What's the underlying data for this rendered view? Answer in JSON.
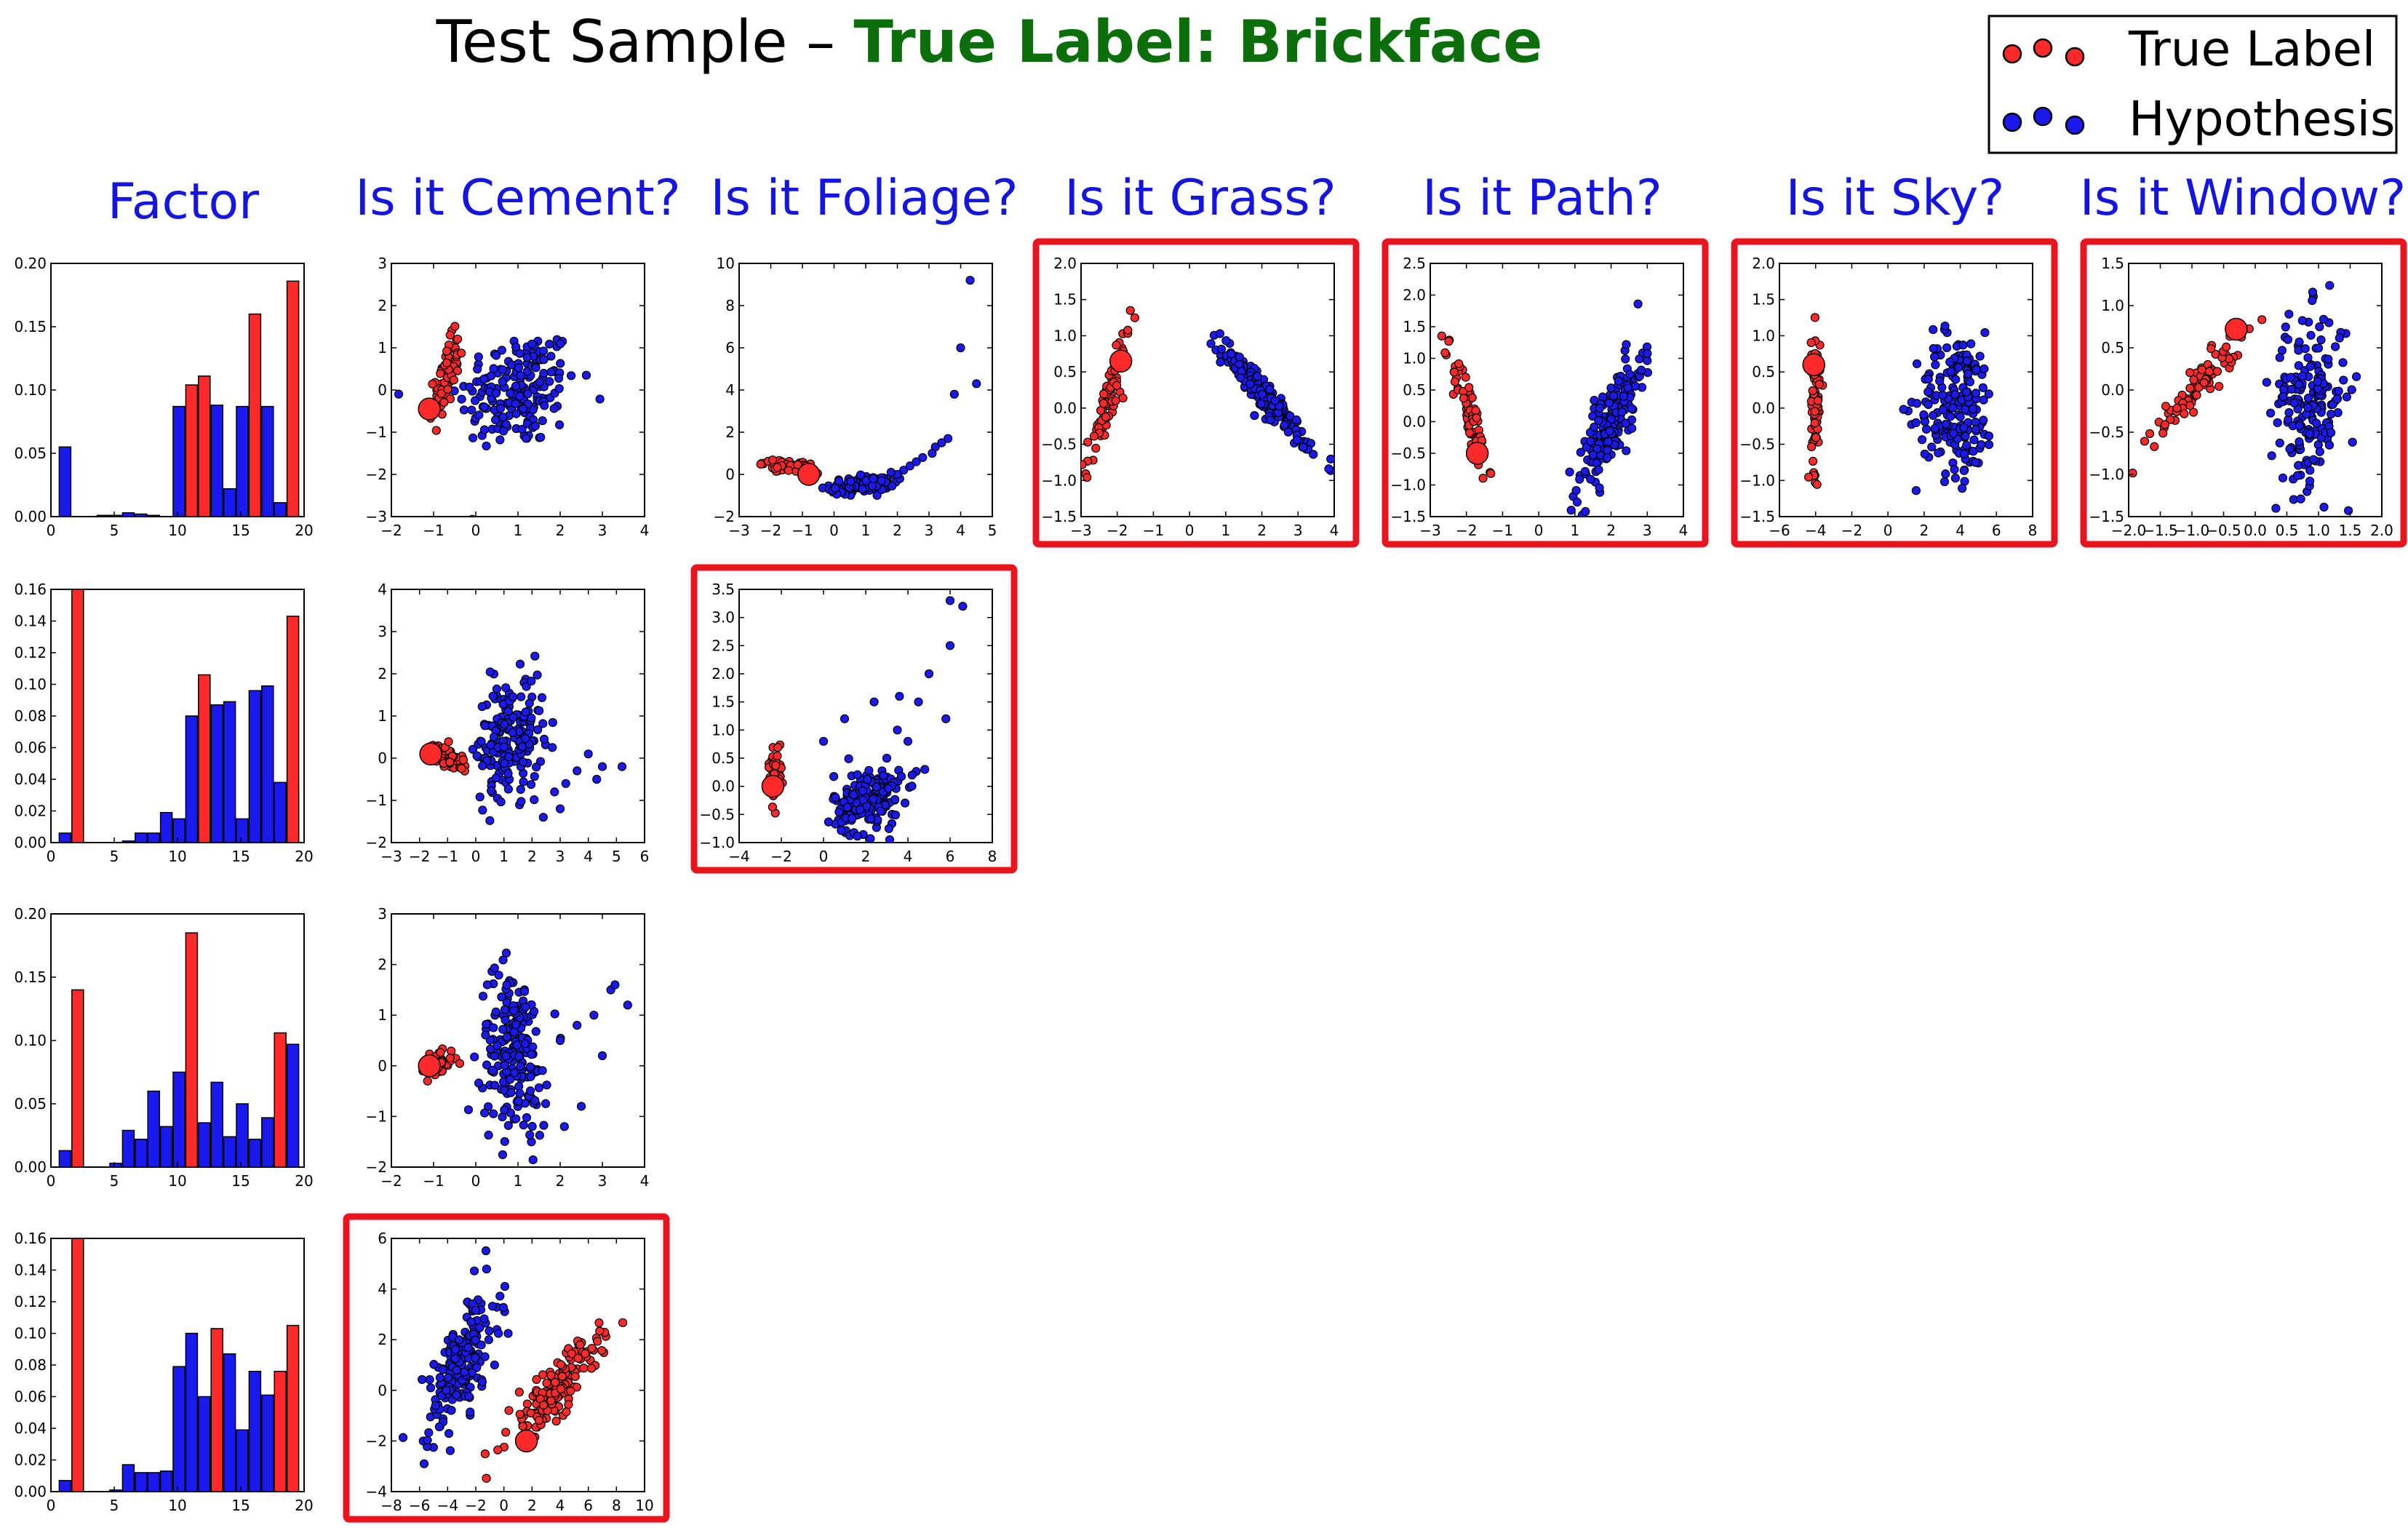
{
  "figure": {
    "title_prefix": "Test Sample – ",
    "title_highlight": "True Label: Brickface",
    "title_highlight_color": "#0a6e0a",
    "column_heading_color": "#1515e0",
    "highlight_border_color": "#e8141e",
    "columns": [
      "Factor",
      "Is it Cement?",
      "Is it Foliage?",
      "Is it Grass?",
      "Is it Path?",
      "Is it Sky?",
      "Is it Window?"
    ],
    "legend": [
      {
        "label": "True Label",
        "color": "#ff2a2a"
      },
      {
        "label": "Hypothesis",
        "color": "#1a1aee"
      }
    ]
  },
  "chart_data": [
    {
      "type": "bar",
      "row": 0,
      "col": 0,
      "x": [
        1,
        2,
        3,
        4,
        5,
        6,
        7,
        8,
        9,
        10,
        11,
        12,
        13,
        14,
        15,
        16,
        17,
        18,
        19
      ],
      "values": [
        0.055,
        0.0,
        0.0,
        0.001,
        0.001,
        0.003,
        0.002,
        0.001,
        0.0,
        0.087,
        0.104,
        0.111,
        0.088,
        0.022,
        0.087,
        0.16,
        0.087,
        0.011,
        0.186
      ],
      "colors": [
        "b",
        "b",
        "b",
        "b",
        "b",
        "b",
        "b",
        "b",
        "b",
        "b",
        "r",
        "r",
        "b",
        "b",
        "b",
        "r",
        "b",
        "b",
        "r"
      ],
      "xlim": [
        0,
        20
      ],
      "ylim": [
        0,
        0.2
      ],
      "yticks": [
        0.0,
        0.05,
        0.1,
        0.15,
        0.2
      ],
      "xticks": [
        0,
        5,
        10,
        15,
        20
      ]
    },
    {
      "type": "bar",
      "row": 1,
      "col": 0,
      "x": [
        1,
        2,
        3,
        4,
        5,
        6,
        7,
        8,
        9,
        10,
        11,
        12,
        13,
        14,
        15,
        16,
        17,
        18,
        19
      ],
      "values": [
        0.006,
        0.16,
        0.0,
        0.0,
        0.0,
        0.001,
        0.006,
        0.006,
        0.019,
        0.015,
        0.08,
        0.106,
        0.087,
        0.089,
        0.015,
        0.096,
        0.099,
        0.038,
        0.033
      ],
      "colors": [
        "b",
        "r",
        "b",
        "b",
        "b",
        "b",
        "b",
        "b",
        "b",
        "b",
        "b",
        "r",
        "b",
        "b",
        "b",
        "b",
        "b",
        "b",
        "b"
      ],
      "extra_bar": {
        "x": 19,
        "value": 0.143,
        "color": "r"
      },
      "xlim": [
        0,
        20
      ],
      "ylim": [
        0,
        0.16
      ],
      "yticks": [
        0.0,
        0.02,
        0.04,
        0.06,
        0.08,
        0.1,
        0.12,
        0.14,
        0.16
      ],
      "xticks": [
        0,
        5,
        10,
        15,
        20
      ]
    },
    {
      "type": "bar",
      "row": 2,
      "col": 0,
      "x": [
        1,
        2,
        3,
        4,
        5,
        6,
        7,
        8,
        9,
        10,
        11,
        12,
        13,
        14,
        15,
        16,
        17,
        18,
        19
      ],
      "values": [
        0.013,
        0.14,
        0.0,
        0.0,
        0.003,
        0.029,
        0.022,
        0.06,
        0.032,
        0.075,
        0.185,
        0.035,
        0.067,
        0.024,
        0.05,
        0.022,
        0.039,
        0.106,
        0.097
      ],
      "colors": [
        "b",
        "r",
        "b",
        "b",
        "b",
        "b",
        "b",
        "b",
        "b",
        "b",
        "r",
        "b",
        "b",
        "b",
        "b",
        "b",
        "b",
        "r",
        "b"
      ],
      "xlim": [
        0,
        20
      ],
      "ylim": [
        0,
        0.2
      ],
      "yticks": [
        0.0,
        0.05,
        0.1,
        0.15,
        0.2
      ],
      "xticks": [
        0,
        5,
        10,
        15,
        20
      ]
    },
    {
      "type": "bar",
      "row": 3,
      "col": 0,
      "x": [
        1,
        2,
        3,
        4,
        5,
        6,
        7,
        8,
        9,
        10,
        11,
        12,
        13,
        14,
        15,
        16,
        17,
        18,
        19
      ],
      "values": [
        0.007,
        0.16,
        0.0,
        0.0,
        0.001,
        0.017,
        0.012,
        0.012,
        0.013,
        0.079,
        0.1,
        0.06,
        0.103,
        0.087,
        0.039,
        0.076,
        0.061,
        0.076,
        0.105
      ],
      "colors": [
        "b",
        "r",
        "b",
        "b",
        "b",
        "b",
        "b",
        "b",
        "b",
        "b",
        "b",
        "b",
        "r",
        "b",
        "b",
        "b",
        "b",
        "r",
        "r"
      ],
      "xlim": [
        0,
        20
      ],
      "ylim": [
        0,
        0.16
      ],
      "yticks": [
        0.0,
        0.02,
        0.04,
        0.06,
        0.08,
        0.1,
        0.12,
        0.14,
        0.16
      ],
      "xticks": [
        0,
        5,
        10,
        15,
        20
      ]
    },
    {
      "type": "scatter",
      "row": 0,
      "col": 1,
      "xlim": [
        -2,
        4
      ],
      "ylim": [
        -3,
        3
      ],
      "xticks": [
        "−2",
        "−1",
        "0",
        "1",
        "2",
        "3",
        "4"
      ],
      "xtickv": [
        -2,
        -1,
        0,
        1,
        2,
        3,
        4
      ],
      "yticks": [
        "−3",
        "−2",
        "−1",
        "0",
        "1",
        "2",
        "3"
      ],
      "ytickv": [
        -3,
        -2,
        -1,
        0,
        1,
        2,
        3
      ],
      "red": {
        "cx": -0.7,
        "cy": 0.3,
        "sx": 0.15,
        "sy": 0.45,
        "rho": 0.6,
        "n": 70
      },
      "blue": {
        "cx": 1.0,
        "cy": 0.0,
        "sx": 0.7,
        "sy": 0.7,
        "rho": 0.15,
        "n": 190
      },
      "big": [
        -1.1,
        -0.45
      ],
      "highlight": false
    },
    {
      "type": "scatter",
      "row": 0,
      "col": 2,
      "xlim": [
        -3,
        5
      ],
      "ylim": [
        -2,
        10
      ],
      "xticks": [
        "−3",
        "−2",
        "−1",
        "0",
        "1",
        "2",
        "3",
        "4",
        "5"
      ],
      "xtickv": [
        -3,
        -2,
        -1,
        0,
        1,
        2,
        3,
        4,
        5
      ],
      "yticks": [
        "−2",
        "0",
        "2",
        "4",
        "6",
        "8",
        "10"
      ],
      "ytickv": [
        -2,
        0,
        2,
        4,
        6,
        8,
        10
      ],
      "red": {
        "cx": -1.5,
        "cy": 0.4,
        "sx": 0.35,
        "sy": 0.15,
        "rho": -0.5,
        "n": 60
      },
      "blue": {
        "cx": 0.9,
        "cy": -0.5,
        "sx": 0.5,
        "sy": 0.2,
        "rho": 0.3,
        "n": 140
      },
      "tail": [
        [
          1.5,
          -0.3
        ],
        [
          2.0,
          0.0
        ],
        [
          2.4,
          0.4
        ],
        [
          2.8,
          0.8
        ],
        [
          3.2,
          1.3
        ],
        [
          3.6,
          1.7
        ],
        [
          3.1,
          1.0
        ],
        [
          2.6,
          0.6
        ],
        [
          4.0,
          6.0
        ],
        [
          4.3,
          9.2
        ],
        [
          4.5,
          4.3
        ],
        [
          3.8,
          3.8
        ],
        [
          2.2,
          0.2
        ],
        [
          1.8,
          0.1
        ],
        [
          3.4,
          1.5
        ]
      ],
      "big": [
        -0.8,
        0.0
      ],
      "highlight": false
    },
    {
      "type": "scatter",
      "row": 0,
      "col": 3,
      "xlim": [
        -3,
        4
      ],
      "ylim": [
        -1.5,
        2.0
      ],
      "xticks": [
        "−3",
        "−2",
        "−1",
        "0",
        "1",
        "2",
        "3",
        "4"
      ],
      "xtickv": [
        -3,
        -2,
        -1,
        0,
        1,
        2,
        3,
        4
      ],
      "yticks": [
        "−1.5",
        "−1.0",
        "−0.5",
        "0.0",
        "0.5",
        "1.0",
        "1.5",
        "2.0"
      ],
      "ytickv": [
        -1.5,
        -1.0,
        -0.5,
        0.0,
        0.5,
        1.0,
        1.5,
        2.0
      ],
      "red": {
        "cx": -2.25,
        "cy": 0.1,
        "sx": 0.3,
        "sy": 0.5,
        "rho": 0.92,
        "n": 80
      },
      "blue": {
        "cx": 2.1,
        "cy": 0.15,
        "sx": 0.6,
        "sy": 0.35,
        "rho": -0.95,
        "n": 190
      },
      "big": [
        -1.9,
        0.65
      ],
      "highlight": true
    },
    {
      "type": "scatter",
      "row": 0,
      "col": 4,
      "xlim": [
        -3,
        4
      ],
      "ylim": [
        -1.5,
        2.5
      ],
      "xticks": [
        "−3",
        "−2",
        "−1",
        "0",
        "1",
        "2",
        "3",
        "4"
      ],
      "xtickv": [
        -3,
        -2,
        -1,
        0,
        1,
        2,
        3,
        4
      ],
      "yticks": [
        "−1.5",
        "−1.0",
        "−0.5",
        "0.0",
        "0.5",
        "1.0",
        "1.5",
        "2.0",
        "2.5"
      ],
      "ytickv": [
        -1.5,
        -1.0,
        -0.5,
        0.0,
        0.5,
        1.0,
        1.5,
        2.0,
        2.5
      ],
      "red": {
        "cx": -1.9,
        "cy": 0.1,
        "sx": 0.25,
        "sy": 0.45,
        "rho": -0.85,
        "n": 80
      },
      "blue": {
        "cx": 2.0,
        "cy": 0.0,
        "sx": 0.45,
        "sy": 0.55,
        "rho": 0.8,
        "n": 190
      },
      "big": [
        -1.7,
        -0.5
      ],
      "highlight": true
    },
    {
      "type": "scatter",
      "row": 0,
      "col": 5,
      "xlim": [
        -6,
        8
      ],
      "ylim": [
        -1.5,
        2.0
      ],
      "xticks": [
        "−6",
        "−4",
        "−2",
        "0",
        "2",
        "4",
        "6",
        "8"
      ],
      "xtickv": [
        -6,
        -4,
        -2,
        0,
        2,
        4,
        6,
        8
      ],
      "yticks": [
        "−1.5",
        "−1.0",
        "−0.5",
        "0.0",
        "0.5",
        "1.0",
        "1.5",
        "2.0"
      ],
      "ytickv": [
        -1.5,
        -1.0,
        -0.5,
        0.0,
        0.5,
        1.0,
        1.5,
        2.0
      ],
      "red": {
        "cx": -4.0,
        "cy": 0.1,
        "sx": 0.12,
        "sy": 0.5,
        "rho": 0.0,
        "n": 80
      },
      "blue": {
        "cx": 3.8,
        "cy": 0.05,
        "sx": 1.1,
        "sy": 0.5,
        "rho": 0.0,
        "n": 200
      },
      "big": [
        -4.1,
        0.6
      ],
      "highlight": true
    },
    {
      "type": "scatter",
      "row": 0,
      "col": 6,
      "xlim": [
        -2,
        2
      ],
      "ylim": [
        -1.5,
        1.5
      ],
      "xticks": [
        "−2.0",
        "−1.5",
        "−1.0",
        "−0.5",
        "0.0",
        "0.5",
        "1.0",
        "1.5",
        "2.0"
      ],
      "xtickv": [
        -2,
        -1.5,
        -1,
        -0.5,
        0,
        0.5,
        1,
        1.5,
        2
      ],
      "yticks": [
        "−1.5",
        "−1.0",
        "−0.5",
        "0.0",
        "0.5",
        "1.0",
        "1.5"
      ],
      "ytickv": [
        -1.5,
        -1.0,
        -0.5,
        0.0,
        0.5,
        1.0,
        1.5
      ],
      "red": {
        "cx": -0.9,
        "cy": 0.05,
        "sx": 0.35,
        "sy": 0.3,
        "rho": 0.92,
        "n": 80
      },
      "blue": {
        "cx": 0.85,
        "cy": -0.1,
        "sx": 0.3,
        "sy": 0.5,
        "rho": 0.1,
        "n": 190
      },
      "big": [
        -0.3,
        0.72
      ],
      "highlight": true
    },
    {
      "type": "scatter",
      "row": 1,
      "col": 1,
      "xlim": [
        -3,
        6
      ],
      "ylim": [
        -2,
        4
      ],
      "xticks": [
        "−3",
        "−2",
        "−1",
        "0",
        "1",
        "2",
        "3",
        "4",
        "5",
        "6"
      ],
      "xtickv": [
        -3,
        -2,
        -1,
        0,
        1,
        2,
        3,
        4,
        5,
        6
      ],
      "yticks": [
        "−2",
        "−1",
        "0",
        "1",
        "2",
        "3",
        "4"
      ],
      "ytickv": [
        -2,
        -1,
        0,
        1,
        2,
        3,
        4
      ],
      "red": {
        "cx": -1.0,
        "cy": 0.0,
        "sx": 0.35,
        "sy": 0.15,
        "rho": -0.4,
        "n": 50
      },
      "blue": {
        "cx": 1.2,
        "cy": 0.5,
        "sx": 0.6,
        "sy": 0.7,
        "rho": 0.2,
        "n": 190
      },
      "tail": [
        [
          3.2,
          -0.6
        ],
        [
          3.6,
          -0.3
        ],
        [
          4.0,
          0.1
        ],
        [
          4.5,
          -0.2
        ],
        [
          5.2,
          -0.2
        ],
        [
          2.8,
          -0.8
        ],
        [
          3.0,
          -1.2
        ],
        [
          2.4,
          -1.4
        ],
        [
          4.3,
          -0.5
        ]
      ],
      "big": [
        -1.6,
        0.1
      ],
      "highlight": false
    },
    {
      "type": "scatter",
      "row": 1,
      "col": 2,
      "xlim": [
        -4,
        8
      ],
      "ylim": [
        -1.0,
        3.5
      ],
      "xticks": [
        "−4",
        "−2",
        "0",
        "2",
        "4",
        "6",
        "8"
      ],
      "xtickv": [
        -4,
        -2,
        0,
        2,
        4,
        6,
        8
      ],
      "yticks": [
        "−1.0",
        "−0.5",
        "0.0",
        "0.5",
        "1.0",
        "1.5",
        "2.0",
        "2.5",
        "3.0",
        "3.5"
      ],
      "ytickv": [
        -1.0,
        -0.5,
        0.0,
        0.5,
        1.0,
        1.5,
        2.0,
        2.5,
        3.0,
        3.5
      ],
      "red": {
        "cx": -2.3,
        "cy": 0.25,
        "sx": 0.15,
        "sy": 0.25,
        "rho": 0.0,
        "n": 40
      },
      "blue": {
        "cx": 2.1,
        "cy": -0.25,
        "sx": 0.8,
        "sy": 0.3,
        "rho": 0.2,
        "n": 180
      },
      "tail": [
        [
          3.0,
          0.5
        ],
        [
          3.5,
          1.0
        ],
        [
          4.0,
          0.8
        ],
        [
          4.5,
          1.5
        ],
        [
          5.0,
          2.0
        ],
        [
          6.0,
          3.3
        ],
        [
          6.6,
          3.2
        ],
        [
          6.0,
          2.5
        ],
        [
          5.8,
          1.2
        ],
        [
          4.8,
          0.3
        ],
        [
          4.2,
          0.2
        ],
        [
          3.6,
          1.6
        ],
        [
          2.4,
          1.5
        ],
        [
          1.0,
          1.2
        ],
        [
          0.0,
          0.8
        ]
      ],
      "big": [
        -2.4,
        0.0
      ],
      "highlight": true
    },
    {
      "type": "scatter",
      "row": 2,
      "col": 1,
      "xlim": [
        -2,
        4
      ],
      "ylim": [
        -2,
        3
      ],
      "xticks": [
        "−2",
        "−1",
        "0",
        "1",
        "2",
        "3",
        "4"
      ],
      "xtickv": [
        -2,
        -1,
        0,
        1,
        2,
        3,
        4
      ],
      "yticks": [
        "−2",
        "−1",
        "0",
        "1",
        "2",
        "3"
      ],
      "ytickv": [
        -2,
        -1,
        0,
        1,
        2,
        3
      ],
      "red": {
        "cx": -0.9,
        "cy": 0.05,
        "sx": 0.2,
        "sy": 0.15,
        "rho": 0.3,
        "n": 40
      },
      "blue": {
        "cx": 0.9,
        "cy": 0.3,
        "sx": 0.4,
        "sy": 0.8,
        "rho": -0.1,
        "n": 200
      },
      "tail": [
        [
          2.0,
          0.5
        ],
        [
          2.4,
          0.8
        ],
        [
          2.8,
          1.0
        ],
        [
          3.2,
          1.5
        ],
        [
          3.6,
          1.2
        ],
        [
          3.0,
          0.2
        ],
        [
          2.5,
          -0.8
        ],
        [
          2.1,
          -1.2
        ],
        [
          3.3,
          1.6
        ]
      ],
      "big": [
        -1.1,
        0.0
      ],
      "highlight": false
    },
    {
      "type": "scatter",
      "row": 3,
      "col": 1,
      "xlim": [
        -8,
        10
      ],
      "ylim": [
        -4,
        6
      ],
      "xticks": [
        "−8",
        "−6",
        "−4",
        "−2",
        "0",
        "2",
        "4",
        "6",
        "8",
        "10"
      ],
      "xtickv": [
        -8,
        -6,
        -4,
        -2,
        0,
        2,
        4,
        6,
        8,
        10
      ],
      "yticks": [
        "−4",
        "−2",
        "0",
        "2",
        "4",
        "6"
      ],
      "ytickv": [
        -4,
        -2,
        0,
        2,
        4,
        6
      ],
      "red": {
        "cx": 3.6,
        "cy": 0.0,
        "sx": 1.6,
        "sy": 1.0,
        "rho": 0.85,
        "n": 170
      },
      "blue": {
        "cx": -3.0,
        "cy": 1.0,
        "sx": 1.3,
        "sy": 1.5,
        "rho": 0.7,
        "n": 190
      },
      "big": [
        1.6,
        -2.0
      ],
      "highlight": true
    }
  ]
}
